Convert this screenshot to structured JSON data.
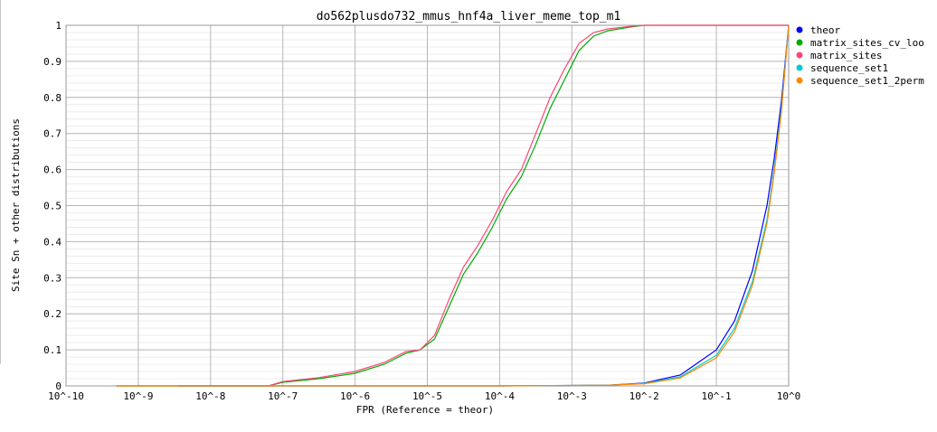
{
  "chart_data": {
    "type": "line",
    "title": "do562plusdo732_mmus_hnf4a_liver_meme_top_m1",
    "xlabel": "FPR (Reference = theor)",
    "ylabel": "Site Sn + other distributions",
    "x_scale": "log10",
    "xlim": [
      -10,
      0
    ],
    "ylim": [
      0,
      1
    ],
    "x_ticks": [
      "10^-10",
      "10^-9",
      "10^-8",
      "10^-7",
      "10^-6",
      "10^-5",
      "10^-4",
      "10^-3",
      "10^-2",
      "10^-1",
      "10^0"
    ],
    "y_ticks": [
      "0",
      "0.1",
      "0.2",
      "0.3",
      "0.4",
      "0.5",
      "0.6",
      "0.7",
      "0.8",
      "0.9",
      "1"
    ],
    "grid": true,
    "legend_position": "right",
    "series": [
      {
        "name": "theor",
        "color": "#0000ff",
        "log10_x": [
          -8.45,
          -4,
          -2.5,
          -2,
          -1.5,
          -1,
          -0.75,
          -0.5,
          -0.3,
          -0.2,
          -0.1,
          0
        ],
        "y": [
          0,
          0,
          0.002,
          0.008,
          0.03,
          0.1,
          0.18,
          0.32,
          0.5,
          0.63,
          0.79,
          1.0
        ]
      },
      {
        "name": "matrix_sites_cv_loo",
        "color": "#00aa00",
        "log10_x": [
          -9.3,
          -7.2,
          -7,
          -6.5,
          -6,
          -5.6,
          -5.3,
          -5.1,
          -4.9,
          -4.7,
          -4.5,
          -4.3,
          -4.1,
          -3.9,
          -3.7,
          -3.5,
          -3.3,
          -3.1,
          -2.9,
          -2.7,
          -2.5,
          -2.2,
          -2.0,
          -1.5,
          0
        ],
        "y": [
          0,
          0,
          0.01,
          0.02,
          0.035,
          0.06,
          0.09,
          0.1,
          0.13,
          0.22,
          0.31,
          0.37,
          0.44,
          0.52,
          0.58,
          0.67,
          0.77,
          0.85,
          0.93,
          0.97,
          0.985,
          0.995,
          1.0,
          1.0,
          1.0
        ]
      },
      {
        "name": "matrix_sites",
        "color": "#ff4477",
        "log10_x": [
          -9.3,
          -7.2,
          -7,
          -6.5,
          -6,
          -5.6,
          -5.3,
          -5.1,
          -4.9,
          -4.7,
          -4.5,
          -4.3,
          -4.1,
          -3.9,
          -3.7,
          -3.5,
          -3.3,
          -3.1,
          -2.9,
          -2.7,
          -2.5,
          -2.2,
          -2.0,
          -1.5,
          0
        ],
        "y": [
          0,
          0,
          0.012,
          0.023,
          0.04,
          0.065,
          0.095,
          0.1,
          0.14,
          0.24,
          0.33,
          0.39,
          0.46,
          0.54,
          0.6,
          0.7,
          0.8,
          0.88,
          0.95,
          0.98,
          0.99,
          0.997,
          1.0,
          1.0,
          1.0
        ]
      },
      {
        "name": "sequence_set1",
        "color": "#00cccc",
        "log10_x": [
          -9.3,
          -4,
          -2.5,
          -2,
          -1.5,
          -1,
          -0.75,
          -0.5,
          -0.3,
          -0.2,
          -0.1,
          0
        ],
        "y": [
          0,
          0,
          0.002,
          0.007,
          0.025,
          0.085,
          0.16,
          0.29,
          0.46,
          0.6,
          0.77,
          1.0
        ]
      },
      {
        "name": "sequence_set1_2perm",
        "color": "#ff8800",
        "log10_x": [
          -9.3,
          -4,
          -2.5,
          -2,
          -1.5,
          -1,
          -0.75,
          -0.5,
          -0.3,
          -0.2,
          -0.1,
          0
        ],
        "y": [
          0,
          0,
          0.002,
          0.006,
          0.022,
          0.078,
          0.15,
          0.28,
          0.45,
          0.59,
          0.76,
          1.0
        ]
      }
    ]
  }
}
